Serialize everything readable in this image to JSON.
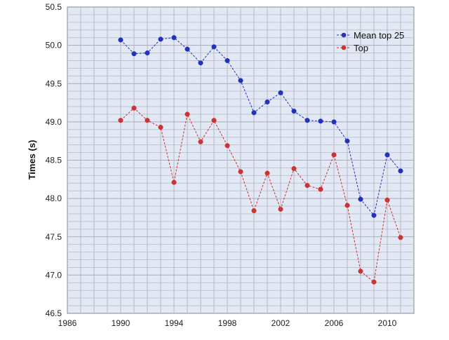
{
  "chart_data": {
    "type": "line",
    "title": "",
    "xlabel": "",
    "ylabel": "Times (s)",
    "xlim": [
      1986,
      2012
    ],
    "ylim": [
      46.5,
      50.5
    ],
    "x_ticks": [
      "1986",
      "1990",
      "1994",
      "1998",
      "2002",
      "2006",
      "2010"
    ],
    "y_ticks": [
      "46.5",
      "47.0",
      "47.5",
      "48.0",
      "48.5",
      "49.0",
      "49.5",
      "50.0",
      "50.5"
    ],
    "grid": true,
    "legend_position": "top-right",
    "x": [
      1990,
      1991,
      1992,
      1993,
      1994,
      1995,
      1996,
      1997,
      1998,
      1999,
      2000,
      2001,
      2002,
      2003,
      2004,
      2005,
      2006,
      2007,
      2008,
      2009,
      2010,
      2011
    ],
    "series": [
      {
        "name": "Mean top 25",
        "color": "#2233bb",
        "values": [
          50.07,
          49.89,
          49.9,
          50.08,
          50.1,
          49.95,
          49.77,
          49.98,
          49.8,
          49.54,
          49.12,
          49.26,
          49.38,
          49.14,
          49.02,
          49.01,
          49.0,
          48.75,
          47.99,
          47.78,
          48.57,
          48.36
        ]
      },
      {
        "name": "Top",
        "color": "#cc3333",
        "values": [
          49.02,
          49.18,
          49.02,
          48.93,
          48.21,
          49.1,
          48.74,
          49.02,
          48.69,
          48.35,
          47.84,
          48.33,
          47.86,
          48.39,
          48.17,
          48.12,
          48.57,
          47.91,
          47.05,
          46.91,
          47.98,
          47.49
        ]
      }
    ]
  }
}
